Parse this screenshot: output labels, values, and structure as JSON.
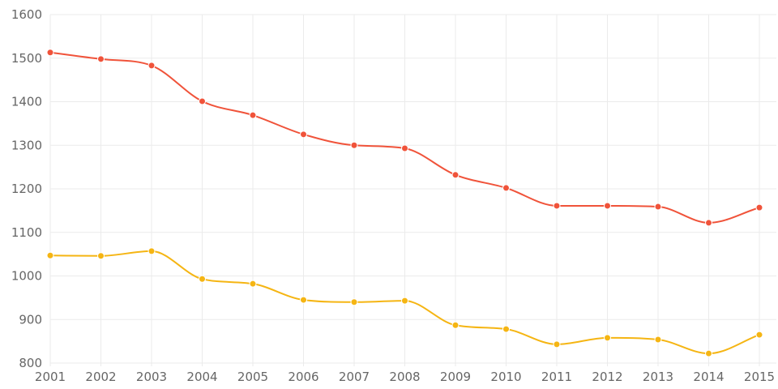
{
  "chart_data": {
    "type": "line",
    "title": "",
    "xlabel": "",
    "ylabel": "",
    "x": [
      "2001",
      "2002",
      "2003",
      "2004",
      "2005",
      "2006",
      "2007",
      "2008",
      "2009",
      "2010",
      "2011",
      "2012",
      "2013",
      "2014",
      "2015"
    ],
    "ylim": [
      800,
      1600
    ],
    "yticks": [
      800,
      900,
      1000,
      1100,
      1200,
      1300,
      1400,
      1500,
      1600
    ],
    "grid": true,
    "smooth": true,
    "series": [
      {
        "color": "#f0533a",
        "values": [
          1513,
          1498,
          1483,
          1401,
          1369,
          1325,
          1300,
          1293,
          1232,
          1202,
          1161,
          1161,
          1159,
          1122,
          1157
        ]
      },
      {
        "color": "#f5b513",
        "values": [
          1047,
          1046,
          1057,
          993,
          982,
          945,
          940,
          943,
          887,
          878,
          843,
          858,
          854,
          822,
          865
        ]
      }
    ]
  }
}
